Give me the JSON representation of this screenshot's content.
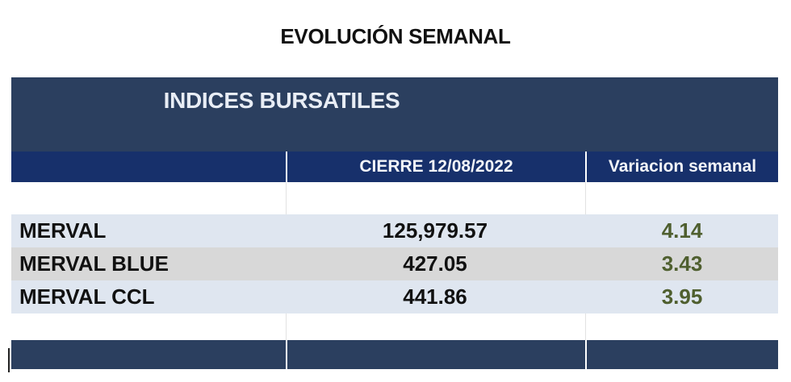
{
  "page": {
    "title": "EVOLUCIÓN SEMANAL"
  },
  "table": {
    "title": "INDICES BURSATILES",
    "columns": [
      "",
      "CIERRE 12/08/2022",
      "Variacion semanal"
    ],
    "rows": [
      {
        "name": "MERVAL",
        "close": "125,979.57",
        "variation": "4.14"
      },
      {
        "name": "MERVAL BLUE",
        "close": "427.05",
        "variation": "3.43"
      },
      {
        "name": "MERVAL CCL",
        "close": "441.86",
        "variation": "3.95"
      }
    ]
  },
  "colors": {
    "title_band": "#2b3f5f",
    "header_band": "#17306b",
    "row_light": "#dfe6f0",
    "row_grey": "#d8d8d8",
    "variation_text": "#4f5f2f"
  }
}
